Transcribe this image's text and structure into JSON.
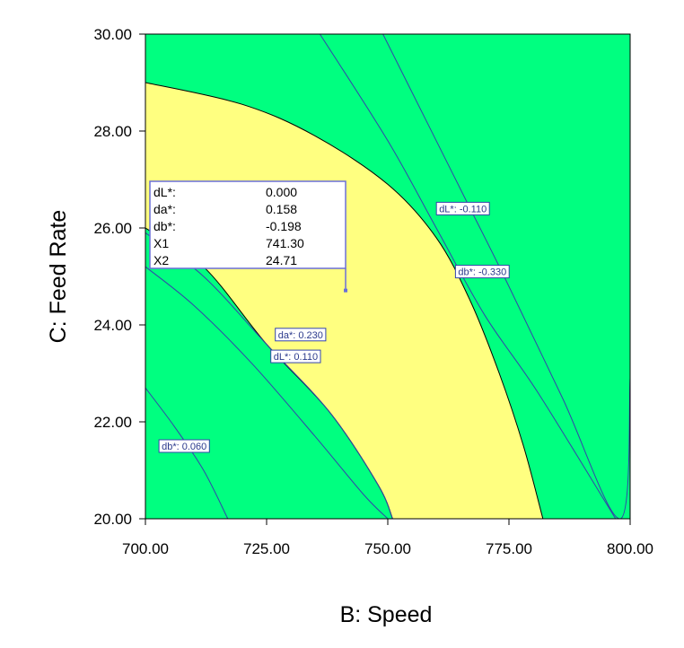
{
  "chart_data": {
    "type": "contour",
    "title": "",
    "xlabel": "B: Speed",
    "ylabel": "C: Feed Rate",
    "xlim": [
      700,
      800
    ],
    "ylim": [
      20,
      30
    ],
    "x_ticks": [
      "700.00",
      "725.00",
      "750.00",
      "775.00",
      "800.00"
    ],
    "y_ticks": [
      "20.00",
      "22.00",
      "24.00",
      "26.00",
      "28.00",
      "30.00"
    ],
    "colors": {
      "feasible": "#ffff80",
      "infeasible": "#00ff80",
      "contour_line": "#3344aa",
      "label_text": "#2b3a8c"
    },
    "feasible_region": {
      "outer_boundary": [
        [
          700,
          29.0
        ],
        [
          720,
          28.55
        ],
        [
          735,
          27.9
        ],
        [
          750,
          26.9
        ],
        [
          760,
          25.8
        ],
        [
          767,
          24.5
        ],
        [
          773,
          23.0
        ],
        [
          778,
          21.5
        ],
        [
          782,
          20.0
        ]
      ],
      "inner_boundary": [
        [
          700,
          26.0
        ],
        [
          712,
          25.2
        ],
        [
          725,
          23.6
        ],
        [
          738,
          22.2
        ],
        [
          748,
          20.7
        ],
        [
          751,
          20.0
        ]
      ]
    },
    "contours": [
      {
        "label": "dL*: -0.110",
        "label_at": [
          765.5,
          26.4
        ],
        "points": [
          [
            736,
            30.0
          ],
          [
            750,
            27.8
          ],
          [
            760,
            26.0
          ],
          [
            770,
            24.2
          ],
          [
            781,
            22.6
          ],
          [
            797,
            20.0
          ]
        ]
      },
      {
        "label": "db*: -0.330",
        "label_at": [
          769.5,
          25.1
        ],
        "points": [
          [
            749,
            30.0
          ],
          [
            758,
            28.2
          ],
          [
            766,
            26.6
          ],
          [
            774,
            25.0
          ],
          [
            786,
            22.5
          ],
          [
            798,
            20.0
          ],
          [
            800,
            22.9
          ]
        ]
      },
      {
        "label": "da*: 0.230",
        "label_at": [
          732.0,
          23.8
        ],
        "points": [
          [
            700,
            25.9
          ],
          [
            712,
            25.0
          ],
          [
            725,
            23.6
          ],
          [
            738,
            22.2
          ],
          [
            748,
            20.7
          ],
          [
            751,
            20.0
          ]
        ]
      },
      {
        "label": "dL*: 0.110",
        "label_at": [
          731.0,
          23.35
        ],
        "points": [
          [
            700,
            25.2
          ],
          [
            710,
            24.4
          ],
          [
            722,
            23.2
          ],
          [
            735,
            21.7
          ],
          [
            745,
            20.5
          ],
          [
            750,
            20.0
          ]
        ]
      },
      {
        "label": "db*: 0.060",
        "label_at": [
          708.0,
          21.5
        ],
        "points": [
          [
            700,
            22.7
          ],
          [
            706,
            21.9
          ],
          [
            712,
            21.0
          ],
          [
            717,
            20.0
          ]
        ]
      }
    ],
    "flag": {
      "x": 741.3,
      "y": 24.71,
      "rows": [
        {
          "name": "dL*:",
          "value": "0.000"
        },
        {
          "name": "da*:",
          "value": "0.158"
        },
        {
          "name": "db*:",
          "value": "-0.198"
        },
        {
          "name": "X1",
          "value": "741.30"
        },
        {
          "name": "X2",
          "value": "24.71"
        }
      ]
    }
  }
}
